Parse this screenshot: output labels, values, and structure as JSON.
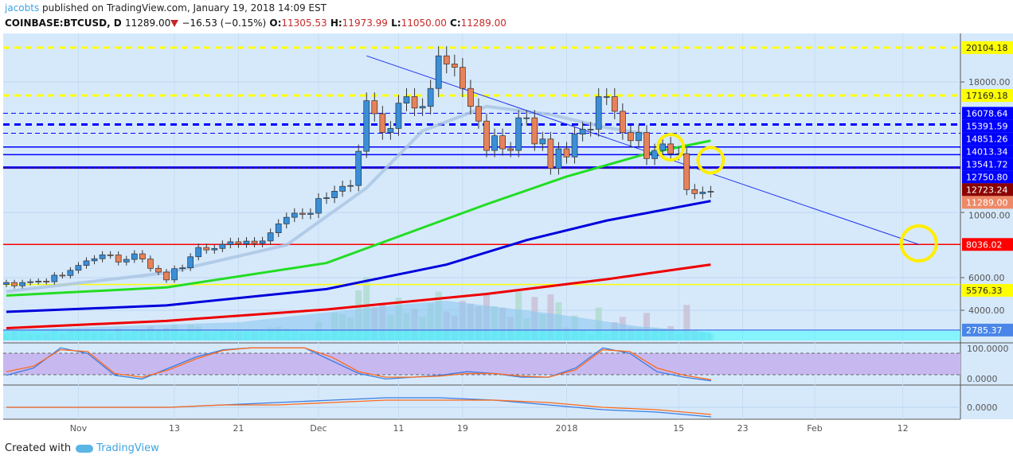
{
  "header": {
    "user": "jacobts",
    "published": "published on TradingView.com, January 19, 2018 14:09 EST",
    "symbol": "COINBASE:BTCUSD, D",
    "last": "11289.00",
    "change": "−16.53 (−0.15%)",
    "o_label": "O:",
    "o": "11305.53",
    "h_label": "H:",
    "h": "11973.99",
    "l_label": "L:",
    "l": "11050.00",
    "c_label": "C:",
    "c": "11289.00"
  },
  "footer": {
    "created": "Created with",
    "brand": "TradingView"
  },
  "chart_data": {
    "type": "candlestick",
    "start_date": "2017-10-23",
    "closes": [
      5700,
      5500,
      5700,
      5750,
      5780,
      5750,
      6150,
      6130,
      6450,
      6750,
      7030,
      7160,
      7400,
      7390,
      6960,
      7120,
      7460,
      7140,
      6570,
      6340,
      5860,
      6550,
      6600,
      7280,
      7850,
      7700,
      7790,
      8040,
      8200,
      8070,
      8240,
      8100,
      8250,
      8750,
      9300,
      9700,
      9950,
      9880,
      9950,
      10850,
      10900,
      11300,
      11600,
      11650,
      13750,
      16850,
      16050,
      14900,
      15150,
      16700,
      17100,
      16400,
      16500,
      17600,
      19600,
      19100,
      18900,
      17600,
      16500,
      15600,
      13800,
      14700,
      13900,
      13800,
      15800,
      15800,
      14200,
      14500,
      12700,
      13900,
      13400,
      14800,
      15100,
      15100,
      17100,
      17100,
      16200,
      14900,
      14400,
      14900,
      13300,
      13800,
      14200,
      13600,
      13600,
      11400,
      11150,
      11250,
      11289
    ],
    "x_ticks": [
      {
        "label": "Nov",
        "i": 9
      },
      {
        "label": "13",
        "i": 21
      },
      {
        "label": "21",
        "i": 29
      },
      {
        "label": "Dec",
        "i": 39
      },
      {
        "label": "11",
        "i": 49
      },
      {
        "label": "19",
        "i": 57
      },
      {
        "label": "2018",
        "i": 70
      },
      {
        "label": "15",
        "i": 84
      },
      {
        "label": "23",
        "i": 92
      },
      {
        "label": "Feb",
        "i": 101
      },
      {
        "label": "12",
        "i": 112
      }
    ],
    "y_ticks": [
      18000,
      10000,
      6000,
      4000
    ],
    "y_range": [
      2500,
      21000
    ],
    "levels": [
      {
        "label": "20104.18",
        "price": 20104.18,
        "color": "#ffff00",
        "text": "#222",
        "style": "dash"
      },
      {
        "label": "17169.18",
        "price": 17169.18,
        "color": "#ffff00",
        "text": "#222",
        "style": "dash"
      },
      {
        "label": "16078.64",
        "price": 16078.64,
        "color": "#0000ff",
        "text": "#fff",
        "style": "thindash"
      },
      {
        "label": "15391.59",
        "price": 15391.59,
        "color": "#0000ff",
        "text": "#fff",
        "style": "dash"
      },
      {
        "label": "14851.26",
        "price": 14851.26,
        "color": "#0000ff",
        "text": "#fff",
        "style": "thindash"
      },
      {
        "label": "14013.34",
        "price": 14013.34,
        "color": "#0000ff",
        "text": "#fff",
        "style": "solid"
      },
      {
        "label": "13541.72",
        "price": 13541.72,
        "color": "#0000ff",
        "text": "#fff",
        "style": "solid"
      },
      {
        "label": "12750.80",
        "price": 12750.8,
        "color": "#0000ff",
        "text": "#fff",
        "style": "thick"
      },
      {
        "label": "12723.24",
        "price": 12723.24,
        "color": "#8b0000",
        "text": "#fff",
        "style": "dot"
      },
      {
        "label": "11289.00",
        "price": 11289.0,
        "color": "#ee8866",
        "text": "#fff",
        "style": "none"
      },
      {
        "label": "8036.02",
        "price": 8036.02,
        "color": "#ff0000",
        "text": "#fff",
        "style": "solid"
      },
      {
        "label": "5576.33",
        "price": 5576.33,
        "color": "#ffff00",
        "text": "#222",
        "style": "solid"
      },
      {
        "label": "2785.37",
        "price": 2785.37,
        "color": "#4a86e8",
        "text": "#fff",
        "style": "solid"
      }
    ],
    "ma": [
      {
        "name": "MA green",
        "color": "#22dd22",
        "points": [
          [
            0,
            4900
          ],
          [
            20,
            5400
          ],
          [
            40,
            6900
          ],
          [
            50,
            8700
          ],
          [
            60,
            10500
          ],
          [
            70,
            12200
          ],
          [
            80,
            13600
          ],
          [
            88,
            14400
          ]
        ]
      },
      {
        "name": "MA blue",
        "color": "#0000dd",
        "points": [
          [
            0,
            3900
          ],
          [
            20,
            4300
          ],
          [
            40,
            5300
          ],
          [
            55,
            6800
          ],
          [
            65,
            8300
          ],
          [
            75,
            9500
          ],
          [
            88,
            10700
          ]
        ]
      },
      {
        "name": "MA red",
        "color": "#ee0000",
        "points": [
          [
            0,
            2900
          ],
          [
            20,
            3350
          ],
          [
            40,
            4050
          ],
          [
            60,
            5000
          ],
          [
            75,
            5900
          ],
          [
            88,
            6800
          ]
        ]
      },
      {
        "name": "MA light",
        "color": "#a9c4e4",
        "points": [
          [
            0,
            5150
          ],
          [
            20,
            6300
          ],
          [
            35,
            8000
          ],
          [
            45,
            11500
          ],
          [
            52,
            15000
          ],
          [
            60,
            16500
          ],
          [
            68,
            16000
          ],
          [
            75,
            15200
          ],
          [
            80,
            14800
          ]
        ]
      }
    ],
    "trendline": {
      "from": [
        45,
        19600
      ],
      "to": [
        114,
        8036
      ]
    },
    "circles": [
      [
        83,
        14000
      ],
      [
        88,
        13200
      ],
      [
        114,
        8100
      ]
    ],
    "stoch": {
      "axis": "100.0000",
      "axis2": "0.0000",
      "k": [
        20,
        40,
        95,
        80,
        20,
        10,
        40,
        70,
        90,
        95,
        95,
        95,
        60,
        25,
        10,
        15,
        20,
        30,
        25,
        15,
        15,
        40,
        95,
        80,
        30,
        15,
        5
      ],
      "d": [
        30,
        45,
        90,
        85,
        25,
        15,
        35,
        65,
        88,
        95,
        95,
        95,
        70,
        30,
        15,
        15,
        18,
        25,
        25,
        18,
        15,
        35,
        90,
        85,
        40,
        20,
        8
      ]
    },
    "macd": {
      "axis": "0.0000",
      "line": [
        0,
        0,
        0,
        0,
        1,
        2,
        3,
        4,
        4,
        3,
        1,
        -1,
        -2,
        -4
      ],
      "signal": [
        0,
        0,
        0,
        0,
        1,
        1,
        2,
        3,
        3,
        3,
        2,
        0,
        -1,
        -3
      ]
    }
  }
}
